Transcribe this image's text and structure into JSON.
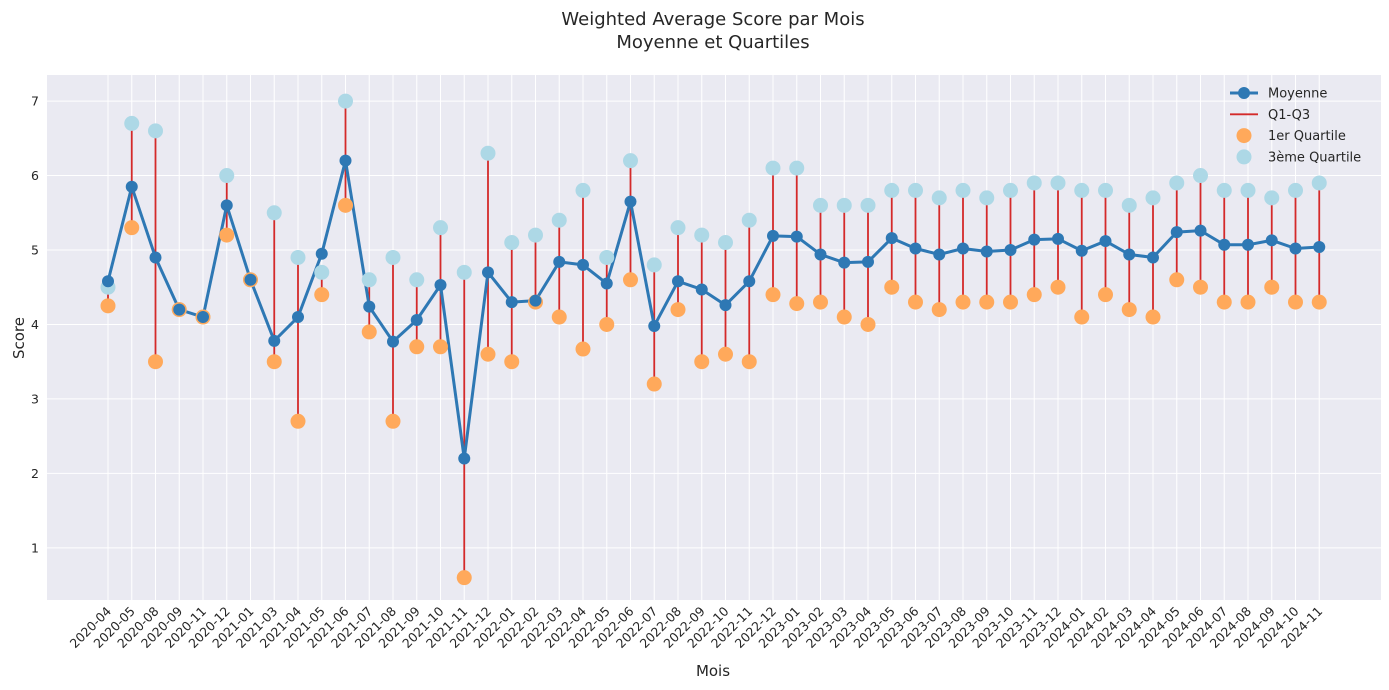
{
  "chart_data": {
    "type": "line",
    "title": "Weighted Average Score par Mois",
    "subtitle": "Moyenne et Quartiles",
    "xlabel": "Mois",
    "ylabel": "Score",
    "ylim": [
      0.3,
      7.35
    ],
    "yticks": [
      1,
      2,
      3,
      4,
      5,
      6,
      7
    ],
    "grid": true,
    "legend_position": "top-right",
    "categories": [
      "2020-04",
      "2020-05",
      "2020-08",
      "2020-09",
      "2020-11",
      "2020-12",
      "2021-01",
      "2021-03",
      "2021-04",
      "2021-05",
      "2021-06",
      "2021-07",
      "2021-08",
      "2021-09",
      "2021-10",
      "2021-11",
      "2021-12",
      "2022-01",
      "2022-02",
      "2022-03",
      "2022-04",
      "2022-05",
      "2022-06",
      "2022-07",
      "2022-08",
      "2022-09",
      "2022-10",
      "2022-11",
      "2022-12",
      "2023-01",
      "2023-02",
      "2023-03",
      "2023-04",
      "2023-05",
      "2023-06",
      "2023-07",
      "2023-08",
      "2023-09",
      "2023-10",
      "2023-11",
      "2023-12",
      "2024-01",
      "2024-02",
      "2024-03",
      "2024-04",
      "2024-05",
      "2024-06",
      "2024-07",
      "2024-08",
      "2024-09",
      "2024-10",
      "2024-11"
    ],
    "series": [
      {
        "name": "Moyenne",
        "color": "#2e78b4",
        "kind": "line",
        "values": [
          4.58,
          5.85,
          4.9,
          4.2,
          4.1,
          5.6,
          4.6,
          3.78,
          4.1,
          4.95,
          6.2,
          4.24,
          3.77,
          4.06,
          4.53,
          2.2,
          4.7,
          4.3,
          4.32,
          4.84,
          4.8,
          4.55,
          5.65,
          3.98,
          4.58,
          4.47,
          4.26,
          4.58,
          5.19,
          5.18,
          4.94,
          4.83,
          4.84,
          5.16,
          5.02,
          4.94,
          5.02,
          4.98,
          5.0,
          5.14,
          5.15,
          4.99,
          5.12,
          4.94,
          4.9,
          5.24,
          5.26,
          5.07,
          5.07,
          5.13,
          5.02,
          5.04
        ]
      },
      {
        "name": "Q1-Q3",
        "color": "#d42a2a",
        "kind": "range"
      },
      {
        "name": "1er Quartile",
        "color": "#ffa95b",
        "kind": "scatter",
        "values": [
          4.25,
          5.3,
          3.5,
          4.2,
          4.1,
          5.2,
          4.6,
          3.5,
          2.7,
          4.4,
          5.6,
          3.9,
          2.7,
          3.7,
          3.7,
          0.6,
          3.6,
          3.5,
          4.3,
          4.1,
          3.67,
          4.0,
          4.6,
          3.2,
          4.2,
          3.5,
          3.6,
          3.5,
          4.4,
          4.28,
          4.3,
          4.1,
          4.0,
          4.5,
          4.3,
          4.2,
          4.3,
          4.3,
          4.3,
          4.4,
          4.5,
          4.1,
          4.4,
          4.2,
          4.1,
          4.6,
          4.5,
          4.3,
          4.3,
          4.5,
          4.3,
          4.3
        ]
      },
      {
        "name": "3ème Quartile",
        "color": "#add8e6",
        "kind": "scatter",
        "values": [
          4.5,
          6.7,
          6.6,
          4.2,
          4.1,
          6.0,
          4.6,
          5.5,
          4.9,
          4.7,
          7.0,
          4.6,
          4.9,
          4.6,
          5.3,
          4.7,
          6.3,
          5.1,
          5.2,
          5.4,
          5.8,
          4.9,
          6.2,
          4.8,
          5.3,
          5.2,
          5.1,
          5.4,
          6.1,
          6.1,
          5.6,
          5.6,
          5.6,
          5.8,
          5.8,
          5.7,
          5.8,
          5.7,
          5.8,
          5.9,
          5.9,
          5.8,
          5.8,
          5.6,
          5.7,
          5.9,
          6.0,
          5.8,
          5.8,
          5.7,
          5.8,
          5.9
        ]
      }
    ]
  }
}
